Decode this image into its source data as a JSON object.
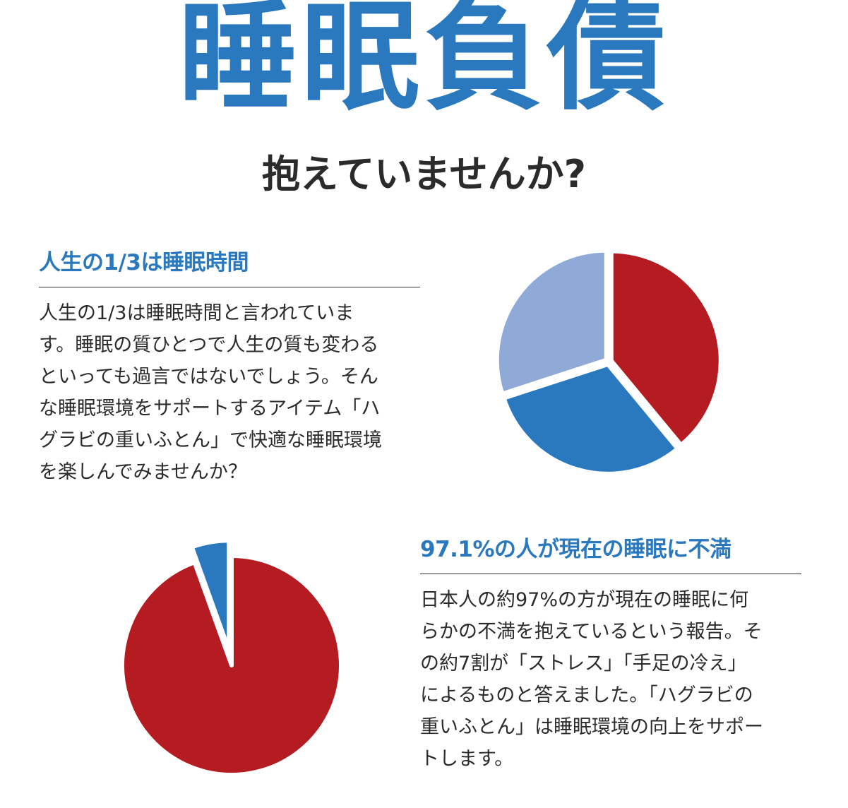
{
  "header": {
    "title": "睡眠負債",
    "subtitle": "抱えていませんか?"
  },
  "section1": {
    "heading": "人生の1/3は睡眠時間",
    "body_lines": [
      "人生の1/3は睡眠時間と言われていま",
      "す。睡眠の質ひとつで人生の質も変わる",
      "といっても過言ではないでしょう。そん",
      "な睡眠環境をサポートするアイテム「ハ",
      "グラビの重いふとん」で快適な睡眠環境",
      "を楽しんでみませんか？"
    ]
  },
  "section2": {
    "heading": "97.1%の人が現在の睡眠に不満",
    "body_lines": [
      "日本人の約97%の方が現在の睡眠に何",
      "らかの不満を抱えているという報告。そ",
      "の約7割が「ストレス」「手足の冷え」",
      "によるものと答えました。「ハグラビの",
      "重いふとん」は睡眠環境の向上をサポー",
      "トします。"
    ]
  },
  "colors": {
    "brand_blue": "#2a79bf",
    "red": "#b51c22",
    "light_blue": "#8faad6",
    "text": "#2b2b2b"
  },
  "chart_data": [
    {
      "type": "pie",
      "title": "",
      "labels": [
        "",
        "",
        ""
      ],
      "values": [
        39,
        31,
        30
      ],
      "colors": [
        "#b51c22",
        "#2a79bf",
        "#8faad6"
      ],
      "start_angle_deg": 0,
      "direction": "clockwise",
      "exploded": true,
      "legend": "none"
    },
    {
      "type": "pie",
      "title": "",
      "labels": [
        "",
        ""
      ],
      "values": [
        94.5,
        5.5
      ],
      "colors": [
        "#b51c22",
        "#2a79bf"
      ],
      "start_angle_deg": 0,
      "direction": "clockwise",
      "exploded": true,
      "legend": "none"
    }
  ]
}
